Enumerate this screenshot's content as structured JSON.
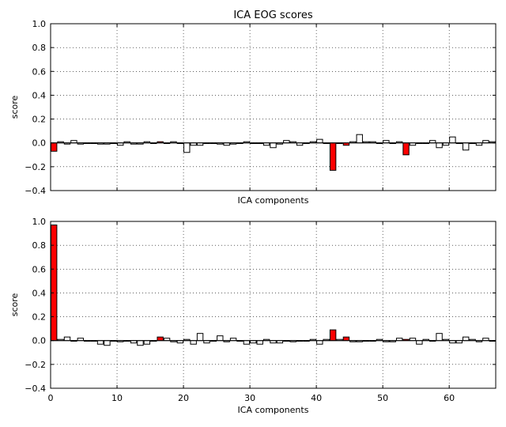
{
  "figure": {
    "title": "ICA EOG scores"
  },
  "chart_data": [
    {
      "type": "bar",
      "title": "ICA EOG scores",
      "xlabel": "ICA components",
      "ylabel": "score",
      "ylim": [
        -0.4,
        1.0
      ],
      "xlim": [
        0,
        67
      ],
      "yticks": [
        "1.0",
        "0.8",
        "0.6",
        "0.4",
        "0.2",
        "0.0",
        "−0.2",
        "−0.4"
      ],
      "xticks": [],
      "grid": true,
      "colors": {
        "normal": "#ffffff",
        "excluded": "#ff0000",
        "edge": "#000000"
      },
      "excluded_components": [
        0,
        16,
        42,
        44,
        53
      ],
      "values": [
        -0.07,
        0.01,
        -0.01,
        0.02,
        -0.01,
        0.0,
        0.0,
        -0.01,
        -0.01,
        0.0,
        -0.02,
        0.01,
        -0.01,
        -0.01,
        0.01,
        0.0,
        0.01,
        0.0,
        0.01,
        0.0,
        -0.08,
        -0.02,
        -0.02,
        0.0,
        0.0,
        -0.01,
        -0.02,
        -0.01,
        0.0,
        0.01,
        0.0,
        0.0,
        -0.02,
        -0.04,
        -0.01,
        0.02,
        0.01,
        -0.02,
        0.0,
        0.01,
        0.03,
        0.0,
        -0.23,
        0.0,
        -0.02,
        0.01,
        0.07,
        0.01,
        0.01,
        0.0,
        0.02,
        0.0,
        0.01,
        -0.1,
        -0.02,
        0.0,
        0.0,
        0.02,
        -0.04,
        -0.02,
        0.05,
        0.0,
        -0.06,
        0.0,
        -0.02,
        0.02,
        0.01
      ]
    },
    {
      "type": "bar",
      "title": "",
      "xlabel": "ICA components",
      "ylabel": "score",
      "ylim": [
        -0.4,
        1.0
      ],
      "xlim": [
        0,
        67
      ],
      "yticks": [
        "1.0",
        "0.8",
        "0.6",
        "0.4",
        "0.2",
        "0.0",
        "−0.2",
        "−0.4"
      ],
      "xticks": [
        "0",
        "10",
        "20",
        "30",
        "40",
        "50",
        "60"
      ],
      "grid": true,
      "colors": {
        "normal": "#ffffff",
        "excluded": "#ff0000",
        "edge": "#000000"
      },
      "excluded_components": [
        0,
        16,
        42,
        44,
        53
      ],
      "values": [
        0.97,
        0.01,
        0.03,
        0.0,
        0.02,
        0.0,
        0.0,
        -0.03,
        -0.04,
        0.0,
        -0.01,
        0.0,
        -0.02,
        -0.04,
        -0.03,
        0.0,
        0.03,
        0.02,
        -0.01,
        -0.02,
        0.01,
        -0.03,
        0.06,
        -0.02,
        0.0,
        0.04,
        -0.01,
        0.02,
        0.0,
        -0.03,
        -0.02,
        -0.03,
        0.01,
        -0.02,
        -0.02,
        0.0,
        -0.01,
        0.0,
        0.0,
        0.01,
        -0.03,
        0.01,
        0.09,
        0.01,
        0.03,
        -0.01,
        -0.01,
        0.0,
        0.0,
        0.01,
        -0.01,
        -0.01,
        0.02,
        0.01,
        0.02,
        -0.03,
        0.01,
        0.0,
        0.06,
        0.01,
        -0.02,
        -0.02,
        0.03,
        0.01,
        -0.01,
        0.02,
        0.0
      ]
    }
  ]
}
